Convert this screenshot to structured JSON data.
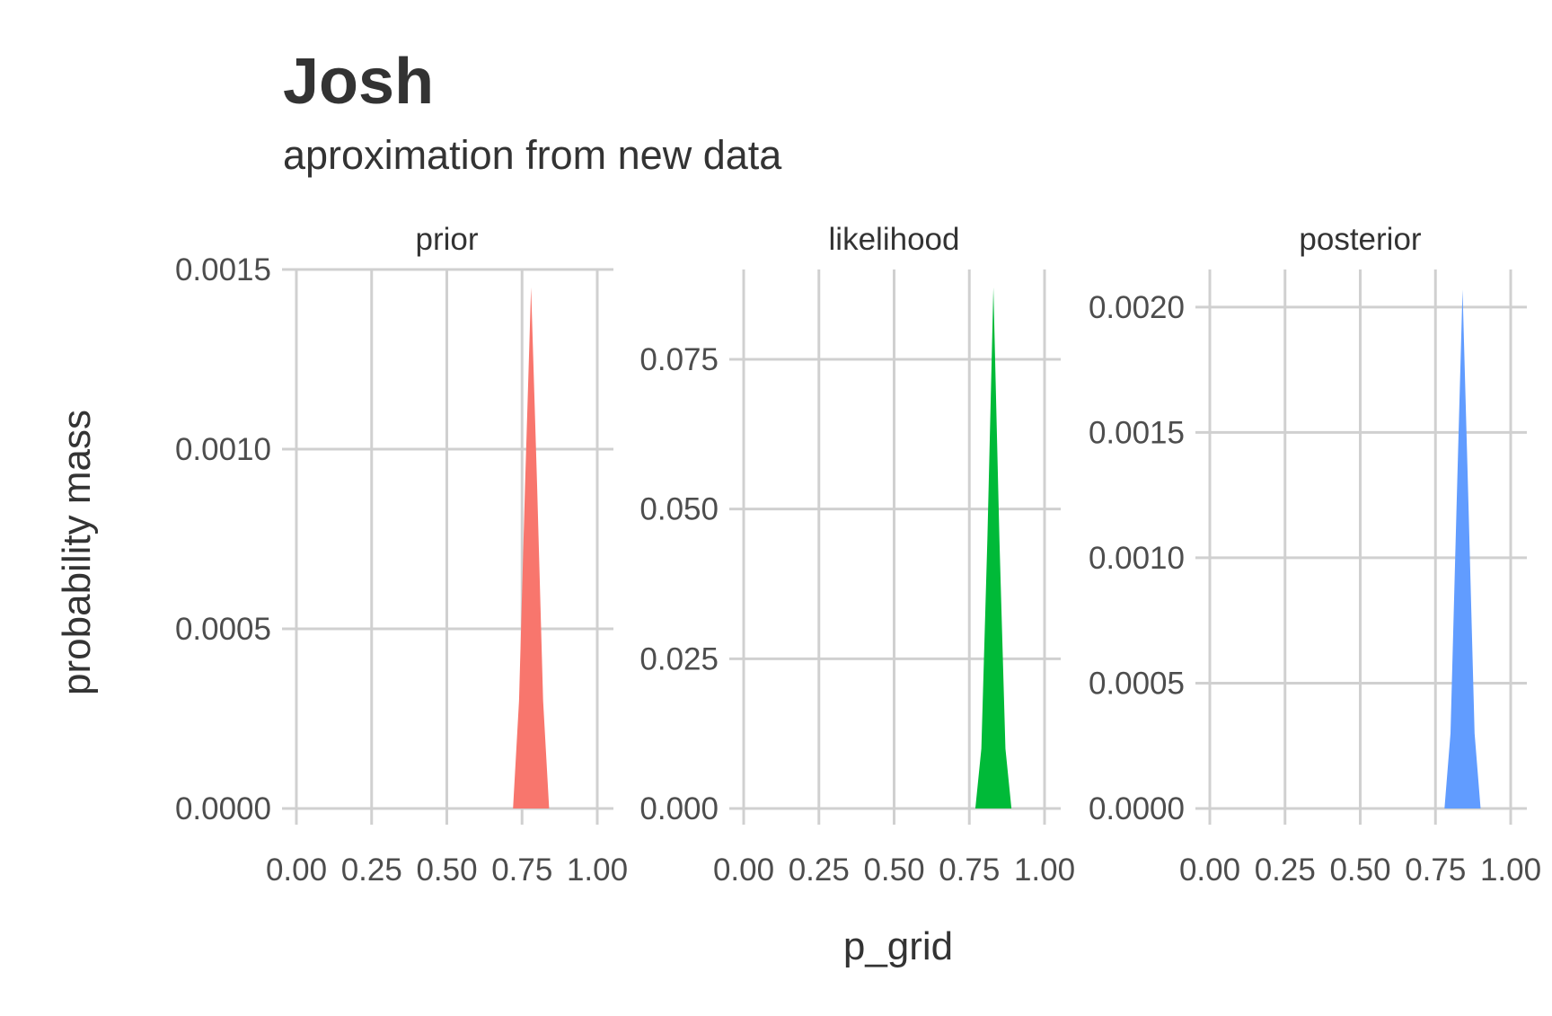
{
  "chart_data": {
    "type": "area",
    "title": "Josh",
    "subtitle": "aproximation from new data",
    "xlabel": "p_grid",
    "ylabel": "probability mass",
    "x_ticks": [
      "0.00",
      "0.25",
      "0.50",
      "0.75",
      "1.00"
    ],
    "xlim": [
      0,
      1
    ],
    "panels": [
      {
        "name": "prior",
        "color": "#F8766D",
        "ylim": [
          0,
          0.0015
        ],
        "y_ticks": [
          0,
          0.0005,
          0.001,
          0.0015
        ],
        "y_tick_labels": [
          "0.0000",
          "0.0005",
          "0.0010",
          "0.0015"
        ],
        "x": [
          0.7,
          0.72,
          0.74,
          0.76,
          0.78,
          0.8,
          0.82,
          0.84,
          0.86,
          0.88
        ],
        "y": [
          0.0,
          0.0,
          0.0003,
          0.0009,
          0.00145,
          0.0009,
          0.0003,
          0.0,
          0.0,
          0.0
        ]
      },
      {
        "name": "likelihood",
        "color": "#00BA38",
        "ylim": [
          0,
          0.09
        ],
        "y_ticks": [
          0,
          0.025,
          0.05,
          0.075
        ],
        "y_tick_labels": [
          "0.000",
          "0.025",
          "0.050",
          "0.075"
        ],
        "x": [
          0.75,
          0.77,
          0.79,
          0.81,
          0.83,
          0.85,
          0.87,
          0.89,
          0.91,
          0.93
        ],
        "y": [
          0.0,
          0.0,
          0.01,
          0.045,
          0.087,
          0.045,
          0.01,
          0.0,
          0.0,
          0.0
        ]
      },
      {
        "name": "posterior",
        "color": "#619CFF",
        "ylim": [
          0,
          0.00215
        ],
        "y_ticks": [
          0,
          0.0005,
          0.001,
          0.0015,
          0.002
        ],
        "y_tick_labels": [
          "0.0000",
          "0.0005",
          "0.0010",
          "0.0015",
          "0.0020"
        ],
        "x": [
          0.76,
          0.78,
          0.8,
          0.82,
          0.84,
          0.86,
          0.88,
          0.9,
          0.92,
          0.94
        ],
        "y": [
          0.0,
          0.0,
          0.0003,
          0.0012,
          0.00207,
          0.0012,
          0.0003,
          0.0,
          0.0,
          0.0
        ]
      }
    ]
  }
}
